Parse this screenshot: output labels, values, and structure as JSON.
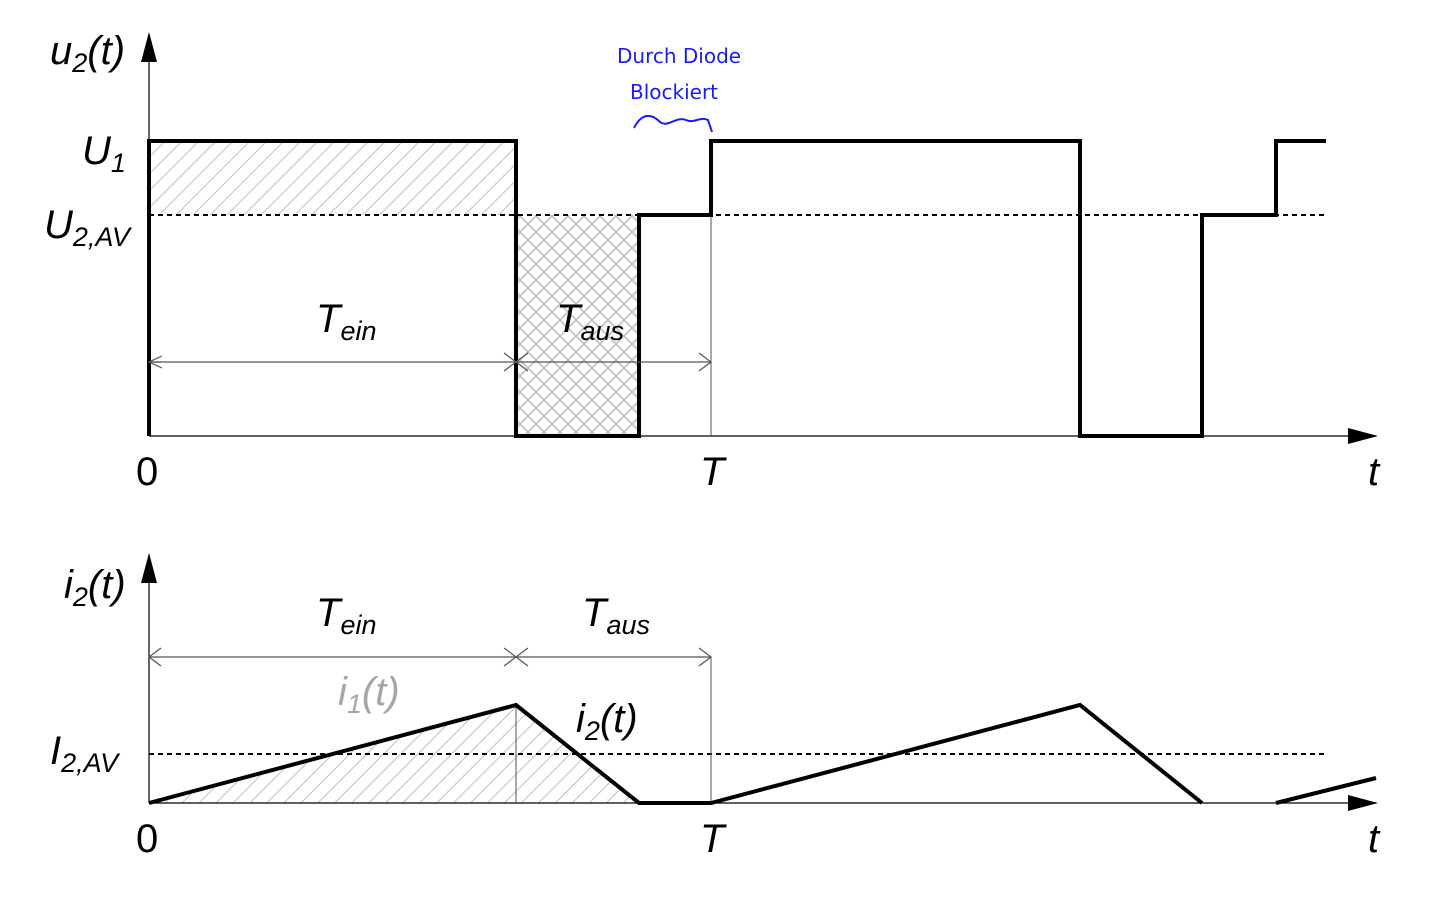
{
  "upper": {
    "y_axis_label": "u₂(t)",
    "y_axis_base": "u",
    "y_axis_sub": "2",
    "y_axis_arg": "(t)",
    "level_u1_base": "U",
    "level_u1_sub": "1",
    "level_uav_base": "U",
    "level_uav_sub": "2,AV",
    "x_origin": "0",
    "x_period": "T",
    "x_axis_label": "t",
    "t_on_base": "T",
    "t_on_sub": "ein",
    "t_off_base": "T",
    "t_off_sub": "aus"
  },
  "lower": {
    "y_axis_base": "i",
    "y_axis_sub": "2",
    "y_axis_arg": "(t)",
    "level_iav_base": "I",
    "level_iav_sub": "2,AV",
    "x_origin": "0",
    "x_period": "T",
    "x_axis_label": "t",
    "t_on_base": "T",
    "t_on_sub": "ein",
    "t_off_base": "T",
    "t_off_sub": "aus",
    "curve_i1_base": "i",
    "curve_i1_sub": "1",
    "curve_i1_arg": "(t)",
    "curve_i2_base": "i",
    "curve_i2_sub": "2",
    "curve_i2_arg": "(t)"
  },
  "handwritten_note": {
    "line1": "Durch Diode",
    "line2": "Blockiert",
    "color": "#1a1aff"
  },
  "colors": {
    "waveform": "#000000",
    "hatch": "#bdbdbd",
    "i1_label": "#a6a6a6"
  }
}
